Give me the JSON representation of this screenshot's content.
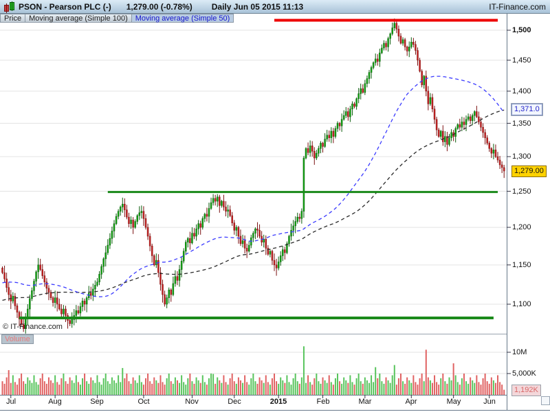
{
  "header": {
    "symbol": "PSON - Pearson PLC (-)",
    "price": "1,279.00 (-0.78%)",
    "session": "Daily  Jun 05 2015 11:13",
    "brand": "IT-Finance.com"
  },
  "tabs": [
    {
      "label": "Price",
      "selected": false
    },
    {
      "label": "Moving average (Simple 100)",
      "selected": false
    },
    {
      "label": "Moving average (Simple 50)",
      "selected": true
    }
  ],
  "main_chart": {
    "copyright": "© IT-Finance.com",
    "price_badge": "1,279.00",
    "ma_badge": "1,371.0"
  },
  "volume_pane": {
    "label": "Volume",
    "badge": "1,192K"
  },
  "colors": {
    "candle_up": "#11a811",
    "candle_up_stroke": "#0a5c0a",
    "candle_down": "#c92222",
    "candle_down_stroke": "#7a1010",
    "volume_up": "#58c45c",
    "volume_down": "#e06262",
    "sma50": "#3a3aff",
    "sma100": "#2a2a2a",
    "support": "#1a8a1a",
    "resistance": "#ee0000",
    "grid": "#e3e3e3",
    "axis": "#667788",
    "badge_price_bg": "#ffd200",
    "badge_ma_text": "#2222cc",
    "badge_vol_text": "#d96868"
  },
  "chart_data": {
    "type": "candlestick+volume",
    "symbol": "PSON",
    "title": "PSON - Pearson PLC",
    "last_price": 1279.0,
    "change_pct": -0.78,
    "as_of": "Jun 05 2015 11:13",
    "period": "Daily, Jul 2014 - Jun 05 2015",
    "y_axis": {
      "scale": "log",
      "ticks": [
        {
          "label": "1,500",
          "value": 1500,
          "bold": true
        },
        {
          "label": "1,450",
          "value": 1450,
          "bold": false
        },
        {
          "label": "1,400",
          "value": 1400,
          "bold": false
        },
        {
          "label": "1,350",
          "value": 1350,
          "bold": false
        },
        {
          "label": "1,300",
          "value": 1300,
          "bold": false
        },
        {
          "label": "1,250",
          "value": 1250,
          "bold": false
        },
        {
          "label": "1,200",
          "value": 1200,
          "bold": false
        },
        {
          "label": "1,150",
          "value": 1150,
          "bold": false
        },
        {
          "label": "1,100",
          "value": 1100,
          "bold": false
        }
      ],
      "range": [
        1040,
        1527
      ]
    },
    "x_axis": {
      "ticks": [
        {
          "label": "Jul",
          "index": 4,
          "bold": false
        },
        {
          "label": "Aug",
          "index": 25,
          "bold": false
        },
        {
          "label": "Sep",
          "index": 45,
          "bold": false
        },
        {
          "label": "Oct",
          "index": 67,
          "bold": false
        },
        {
          "label": "Nov",
          "index": 90,
          "bold": false
        },
        {
          "label": "Dec",
          "index": 110,
          "bold": false
        },
        {
          "label": "2015",
          "index": 131,
          "bold": true
        },
        {
          "label": "Feb",
          "index": 152,
          "bold": false
        },
        {
          "label": "Mar",
          "index": 172,
          "bold": false
        },
        {
          "label": "Apr",
          "index": 194,
          "bold": false
        },
        {
          "label": "May",
          "index": 214,
          "bold": false
        },
        {
          "label": "Jun",
          "index": 231,
          "bold": false
        }
      ]
    },
    "closes": [
      1140,
      1132,
      1121,
      1112,
      1104,
      1110,
      1098,
      1090,
      1082,
      1075,
      1070,
      1082,
      1094,
      1107,
      1117,
      1129,
      1141,
      1150,
      1144,
      1136,
      1128,
      1120,
      1115,
      1108,
      1102,
      1108,
      1100,
      1094,
      1088,
      1094,
      1086,
      1080,
      1076,
      1081,
      1086,
      1092,
      1089,
      1097,
      1104,
      1100,
      1108,
      1114,
      1111,
      1119,
      1124,
      1128,
      1138,
      1148,
      1158,
      1166,
      1176,
      1185,
      1195,
      1205,
      1215,
      1222,
      1228,
      1232,
      1224,
      1214,
      1205,
      1210,
      1200,
      1208,
      1216,
      1220,
      1222,
      1212,
      1200,
      1188,
      1175,
      1162,
      1150,
      1156,
      1140,
      1125,
      1112,
      1100,
      1108,
      1118,
      1112,
      1126,
      1135,
      1130,
      1144,
      1155,
      1168,
      1180,
      1185,
      1179,
      1192,
      1188,
      1198,
      1205,
      1200,
      1212,
      1218,
      1215,
      1226,
      1234,
      1240,
      1236,
      1242,
      1230,
      1236,
      1228,
      1222,
      1224,
      1216,
      1206,
      1196,
      1200,
      1188,
      1178,
      1182,
      1172,
      1168,
      1176,
      1186,
      1192,
      1198,
      1196,
      1188,
      1180,
      1184,
      1172,
      1164,
      1168,
      1156,
      1150,
      1146,
      1154,
      1162,
      1170,
      1166,
      1178,
      1188,
      1196,
      1202,
      1208,
      1214,
      1212,
      1222,
      1298,
      1312,
      1306,
      1316,
      1308,
      1298,
      1305,
      1312,
      1320,
      1315,
      1326,
      1332,
      1328,
      1338,
      1330,
      1342,
      1350,
      1346,
      1356,
      1362,
      1368,
      1360,
      1372,
      1380,
      1376,
      1388,
      1396,
      1404,
      1398,
      1412,
      1420,
      1430,
      1438,
      1446,
      1452,
      1448,
      1462,
      1470,
      1478,
      1472,
      1486,
      1494,
      1504,
      1512,
      1502,
      1490,
      1478,
      1484,
      1472,
      1465,
      1472,
      1480,
      1476,
      1466,
      1450,
      1432,
      1410,
      1424,
      1400,
      1380,
      1390,
      1372,
      1356,
      1340,
      1330,
      1338,
      1322,
      1330,
      1318,
      1328,
      1336,
      1330,
      1342,
      1348,
      1344,
      1352,
      1348,
      1356,
      1360,
      1354,
      1362,
      1368,
      1360,
      1352,
      1344,
      1336,
      1328,
      1320,
      1312,
      1305,
      1310,
      1300,
      1295,
      1288,
      1284,
      1279
    ],
    "volumes_m": [
      3.2,
      2.6,
      4.1,
      5.8,
      2.8,
      4.6,
      3.0,
      2.4,
      3.9,
      5.0,
      3.2,
      2.6,
      4.1,
      3.4,
      2.8,
      4.6,
      3.0,
      2.4,
      3.9,
      5.0,
      3.2,
      2.6,
      4.1,
      3.4,
      2.8,
      4.6,
      3.0,
      2.4,
      3.9,
      5.0,
      3.2,
      2.6,
      4.1,
      3.4,
      2.8,
      4.6,
      3.0,
      2.4,
      3.9,
      5.0,
      3.2,
      2.6,
      4.1,
      3.4,
      2.8,
      4.6,
      3.0,
      2.4,
      3.9,
      5.0,
      3.2,
      2.6,
      4.1,
      3.4,
      2.8,
      4.6,
      3.0,
      6.3,
      3.9,
      5.0,
      3.2,
      2.6,
      4.1,
      3.4,
      2.8,
      4.6,
      3.0,
      2.4,
      3.9,
      5.0,
      3.2,
      2.6,
      4.1,
      3.4,
      2.8,
      4.6,
      3.0,
      2.4,
      3.9,
      5.0,
      3.2,
      2.6,
      4.1,
      3.4,
      2.8,
      4.6,
      3.0,
      2.4,
      3.9,
      5.0,
      3.2,
      2.6,
      4.1,
      3.4,
      2.8,
      4.6,
      3.0,
      2.4,
      3.9,
      5.0,
      4.9,
      2.6,
      4.1,
      3.4,
      2.8,
      4.6,
      3.0,
      2.4,
      3.9,
      5.0,
      3.2,
      2.6,
      4.1,
      3.4,
      2.8,
      4.6,
      3.0,
      2.4,
      3.9,
      5.0,
      3.2,
      2.6,
      4.1,
      3.4,
      2.8,
      4.6,
      3.0,
      2.4,
      3.9,
      5.0,
      3.2,
      2.6,
      4.1,
      3.4,
      2.8,
      4.6,
      3.0,
      2.4,
      3.9,
      5.0,
      3.2,
      2.6,
      4.1,
      11.4,
      2.8,
      4.6,
      3.0,
      2.4,
      3.9,
      5.0,
      3.2,
      2.6,
      4.1,
      3.4,
      2.8,
      4.6,
      3.0,
      2.4,
      3.9,
      5.0,
      3.2,
      2.6,
      4.1,
      3.4,
      2.8,
      4.6,
      3.0,
      2.4,
      3.9,
      5.0,
      3.2,
      2.6,
      4.1,
      3.4,
      2.8,
      4.6,
      3.0,
      6.5,
      3.9,
      5.0,
      3.2,
      2.6,
      4.1,
      3.4,
      2.8,
      4.6,
      7.0,
      2.4,
      3.9,
      5.0,
      3.2,
      2.6,
      4.1,
      3.4,
      2.8,
      4.6,
      3.0,
      2.4,
      3.9,
      5.0,
      3.2,
      10.6,
      4.1,
      3.4,
      2.8,
      4.6,
      3.0,
      2.4,
      3.9,
      5.0,
      3.2,
      2.6,
      4.1,
      3.4,
      7.4,
      4.6,
      3.0,
      2.4,
      3.9,
      5.0,
      3.2,
      2.6,
      4.1,
      3.4,
      2.8,
      4.6,
      3.0,
      2.4,
      3.9,
      5.0,
      3.2,
      2.6,
      4.1,
      3.4,
      2.8,
      4.6,
      3.0,
      2.4,
      1.192
    ],
    "overlays": {
      "sma50": {
        "window": 50,
        "style": "dashed",
        "color": "#3a3aff",
        "last_value": 1371.0
      },
      "sma100": {
        "window": 100,
        "style": "dashed",
        "color": "#2a2a2a"
      },
      "seed_pre_closes": {
        "start": 1060,
        "end": 1148,
        "count": 100
      }
    },
    "levels": {
      "resistance": {
        "price": 1517,
        "from_index": 129,
        "to_index": 235
      },
      "support_upper": {
        "price": 1249,
        "from_index": 50,
        "to_index": 235
      },
      "support_lower": {
        "price": 1083,
        "from_index": 8,
        "to_index": 233
      }
    },
    "volume_axis": {
      "ticks": [
        {
          "label": "10M",
          "value_m": 10
        },
        {
          "label": "5,000K",
          "value_m": 5
        }
      ],
      "last_volume_label": "1,192K",
      "last_volume_m": 1.192
    },
    "legend": [
      "Price",
      "Moving average (Simple 100)",
      "Moving average (Simple 50)"
    ]
  }
}
